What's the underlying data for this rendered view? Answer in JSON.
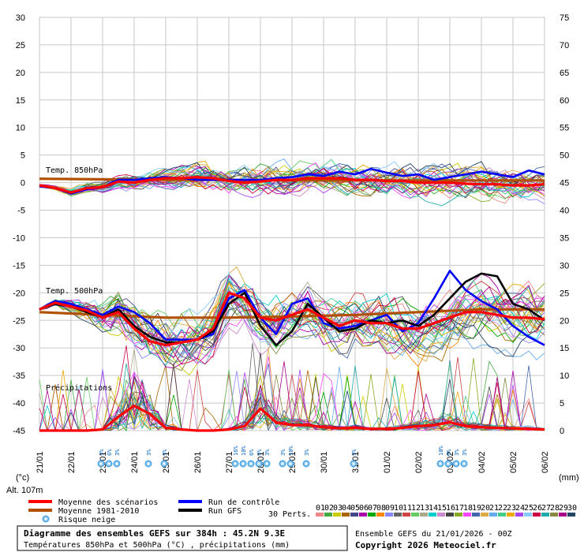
{
  "chart_data": {
    "type": "line",
    "title": "Diagramme des ensembles GEFS sur 384h : 45.2N 9.3E",
    "subtitle": "Températures 850hPa et 500hPa (°C) , précipitations (mm)",
    "run_info": "Ensemble GEFS du 21/01/2026 - 00Z",
    "copyright": "Copyright 2026 Meteociel.fr",
    "y_left_label": "(°c)",
    "y_right_label": "(mm)",
    "altitude": "Alt. 107m",
    "perts_label": "30 Perts.",
    "ylim_left": [
      -45,
      30
    ],
    "ylim_right": [
      0,
      75
    ],
    "y_left_ticks": [
      30,
      25,
      20,
      15,
      10,
      5,
      0,
      -5,
      -10,
      -15,
      -20,
      -25,
      -30,
      -35,
      -40,
      -45
    ],
    "y_right_ticks": [
      75,
      70,
      65,
      60,
      55,
      50,
      45,
      40,
      35,
      30,
      25,
      20,
      15,
      10,
      5,
      0
    ],
    "x_ticks": [
      "21/01",
      "22/01",
      "23/01",
      "24/01",
      "25/01",
      "26/01",
      "27/01",
      "28/01",
      "29/01",
      "30/01",
      "31/01",
      "01/02",
      "02/02",
      "03/02",
      "04/02",
      "05/02",
      "06/02"
    ],
    "x_range_days": [
      0,
      16
    ],
    "grid": true,
    "section_labels": [
      {
        "text": "Temp. 850hPa",
        "value": 1.5
      },
      {
        "text": "Temp. 500hPa",
        "value": -20.5
      },
      {
        "text": "Précipitations",
        "value": -37
      }
    ],
    "legend": [
      {
        "name": "Moyenne des scénarios",
        "color": "#ff0000"
      },
      {
        "name": "Moyenne 1981-2010",
        "color": "#b05000"
      },
      {
        "name": "Run de contrôle",
        "color": "#0000ff"
      },
      {
        "name": "Run GFS",
        "color": "#000000"
      },
      {
        "name": "Risque neige",
        "color": "#4ea8e6"
      }
    ],
    "members": [
      "01",
      "02",
      "03",
      "04",
      "05",
      "06",
      "07",
      "08",
      "09",
      "10",
      "11",
      "12",
      "13",
      "14",
      "15",
      "16",
      "17",
      "18",
      "19",
      "20",
      "21",
      "22",
      "23",
      "24",
      "25",
      "26",
      "27",
      "28",
      "29",
      "30"
    ],
    "member_colors": [
      "#e88",
      "#4a4",
      "#cc0",
      "#a60",
      "#448",
      "#a0a",
      "#0a0",
      "#f80",
      "#88f",
      "#666",
      "#c44",
      "#6c6",
      "#aa8",
      "#0cc",
      "#c8c",
      "#444",
      "#8a2",
      "#f4f",
      "#46a",
      "#da4",
      "#6ae",
      "#4c8",
      "#ea0",
      "#a4e",
      "#8cf",
      "#c04",
      "#2aa",
      "#884",
      "#a08",
      "#246"
    ],
    "snow_risk": [
      {
        "day": 1.95,
        "label": "3%"
      },
      {
        "day": 2.2,
        "label": "6%"
      },
      {
        "day": 2.45,
        "label": "3%"
      },
      {
        "day": 3.45,
        "label": "3%"
      },
      {
        "day": 3.95,
        "label": "3%"
      },
      {
        "day": 6.2,
        "label": "16%"
      },
      {
        "day": 6.45,
        "label": "10%"
      },
      {
        "day": 6.7,
        "label": "6%"
      },
      {
        "day": 6.95,
        "label": "3%"
      },
      {
        "day": 7.2,
        "label": "3%"
      },
      {
        "day": 7.7,
        "label": "3%"
      },
      {
        "day": 7.95,
        "label": "10%"
      },
      {
        "day": 8.45,
        "label": "3%"
      },
      {
        "day": 9.95,
        "label": "3%"
      },
      {
        "day": 12.7,
        "label": "10%"
      },
      {
        "day": 12.95,
        "label": "6%"
      },
      {
        "day": 13.2,
        "label": "3%"
      },
      {
        "day": 13.45,
        "label": "3%"
      }
    ],
    "series": [
      {
        "name": "Moyenne des scénarios",
        "level": "850hPa",
        "x": [
          0,
          0.5,
          1,
          1.5,
          2,
          2.5,
          3,
          3.5,
          4,
          4.5,
          5,
          5.5,
          6,
          6.5,
          7,
          7.5,
          8,
          8.5,
          9,
          9.5,
          10,
          10.5,
          11,
          11.5,
          12,
          12.5,
          13,
          13.5,
          14,
          14.5,
          15,
          15.5,
          16
        ],
        "y": [
          -0.5,
          -1.0,
          -1.8,
          -1.0,
          -0.8,
          0.2,
          0.0,
          0.5,
          0.8,
          0.8,
          1.0,
          0.8,
          0.3,
          0.0,
          0.2,
          0.5,
          0.5,
          0.8,
          0.8,
          0.8,
          0.5,
          0.5,
          0.3,
          0.3,
          0.0,
          0.0,
          0.0,
          -0.2,
          -0.3,
          -0.3,
          -0.5,
          -0.5,
          -0.3
        ]
      },
      {
        "name": "Moyenne 1981-2010",
        "level": "850hPa",
        "x": [
          0,
          2,
          4,
          6,
          8,
          10,
          12,
          14,
          16
        ],
        "y": [
          0.7,
          0.6,
          0.5,
          0.5,
          0.4,
          0.4,
          0.4,
          0.4,
          0.4
        ]
      },
      {
        "name": "Run de contrôle",
        "level": "850hPa",
        "x": [
          0,
          0.5,
          1,
          1.5,
          2,
          2.5,
          3,
          3.5,
          4,
          4.5,
          5,
          5.5,
          6,
          6.5,
          7,
          7.5,
          8,
          8.5,
          9,
          9.5,
          10,
          10.5,
          11,
          11.5,
          12,
          12.5,
          13,
          13.5,
          14,
          14.5,
          15,
          15.5,
          16
        ],
        "y": [
          -0.7,
          -1.0,
          -2.0,
          -1.2,
          -0.8,
          0.5,
          0.5,
          0.8,
          1.0,
          0.8,
          0.5,
          0.5,
          0.5,
          0.5,
          0.5,
          0.8,
          1.0,
          1.5,
          1.2,
          2.0,
          1.5,
          2.5,
          1.8,
          1.2,
          1.5,
          0.5,
          1.0,
          1.5,
          2.0,
          1.5,
          1.0,
          2.2,
          1.5
        ]
      },
      {
        "name": "Moyenne des scénarios",
        "level": "500hPa",
        "x": [
          0,
          0.5,
          1,
          1.5,
          2,
          2.5,
          3,
          3.5,
          4,
          4.5,
          5,
          5.5,
          6,
          6.5,
          7,
          7.5,
          8,
          8.5,
          9,
          9.5,
          10,
          10.5,
          11,
          11.5,
          12,
          12.5,
          13,
          13.5,
          14,
          14.5,
          15,
          15.5,
          16
        ],
        "y": [
          -23,
          -21.8,
          -22.5,
          -23.2,
          -24.5,
          -23.5,
          -26.5,
          -28.8,
          -29.5,
          -29.0,
          -28.5,
          -26.5,
          -20.0,
          -21.0,
          -24.5,
          -25.0,
          -24.0,
          -23.0,
          -24.5,
          -26.0,
          -25.0,
          -25.5,
          -25.5,
          -26.5,
          -26.5,
          -25.5,
          -24.5,
          -23.5,
          -23.5,
          -24.0,
          -24.5,
          -24.5,
          -24.8
        ]
      },
      {
        "name": "Moyenne 1981-2010",
        "level": "500hPa",
        "x": [
          0,
          2,
          4,
          6,
          8,
          10,
          12,
          14,
          16
        ],
        "y": [
          -23.5,
          -24.0,
          -24.5,
          -24.5,
          -24.3,
          -24.0,
          -23.5,
          -23.0,
          -23.0
        ]
      },
      {
        "name": "Run de contrôle",
        "level": "500hPa",
        "x": [
          0,
          0.5,
          1,
          1.5,
          2,
          2.5,
          3,
          3.5,
          4,
          4.5,
          5,
          5.5,
          6,
          6.5,
          7,
          7.5,
          8,
          8.5,
          9,
          9.5,
          10,
          10.5,
          11,
          11.5,
          12,
          12.5,
          13,
          13.5,
          14,
          14.5,
          15,
          15.5,
          16
        ],
        "y": [
          -23,
          -21.5,
          -22,
          -23,
          -24,
          -22.5,
          -23.5,
          -25.5,
          -28.5,
          -28.5,
          -28.5,
          -27.5,
          -21.0,
          -19.5,
          -24.5,
          -27.5,
          -22.0,
          -21.0,
          -25.5,
          -26.5,
          -26.0,
          -25.0,
          -24.0,
          -27.0,
          -25.5,
          -21.0,
          -16.0,
          -19.5,
          -21.5,
          -23.0,
          -26.0,
          -28.0,
          -29.5
        ]
      },
      {
        "name": "Run GFS",
        "level": "500hPa",
        "x": [
          0,
          0.5,
          1,
          1.5,
          2,
          2.5,
          3,
          3.5,
          4,
          4.5,
          5,
          5.5,
          6,
          6.5,
          7,
          7.5,
          8,
          8.5,
          9,
          9.5,
          10,
          10.5,
          11,
          11.5,
          12,
          12.5,
          13,
          13.5,
          14,
          14.5,
          15,
          15.5,
          16
        ],
        "y": [
          -23,
          -22,
          -22.5,
          -23.5,
          -24.5,
          -23,
          -26,
          -28,
          -29,
          -29,
          -28.5,
          -27,
          -22,
          -20,
          -26,
          -29.5,
          -27,
          -22,
          -24.5,
          -27,
          -26.5,
          -25,
          -25.5,
          -25,
          -26,
          -24,
          -21,
          -18,
          -16.5,
          -17,
          -22,
          -23,
          -25
        ]
      },
      {
        "name": "Moyenne des scénarios",
        "level": "precip",
        "x": [
          0,
          0.5,
          1,
          1.5,
          2,
          2.5,
          3,
          3.5,
          4,
          4.5,
          5,
          5.5,
          6,
          6.5,
          7,
          7.5,
          8,
          8.5,
          9,
          9.5,
          10,
          10.5,
          11,
          11.5,
          12,
          12.5,
          13,
          13.5,
          14,
          14.5,
          15,
          15.5,
          16
        ],
        "y": [
          0,
          0,
          0,
          0,
          0.2,
          2.5,
          4.5,
          3.0,
          0.5,
          0.2,
          0,
          0,
          0.2,
          0.8,
          4.0,
          1.5,
          1.0,
          1.0,
          0.6,
          0.4,
          0.5,
          0.3,
          0.3,
          0.5,
          0.8,
          1.0,
          1.5,
          0.8,
          0.6,
          0.5,
          0.4,
          0.3,
          0.2
        ]
      }
    ]
  }
}
